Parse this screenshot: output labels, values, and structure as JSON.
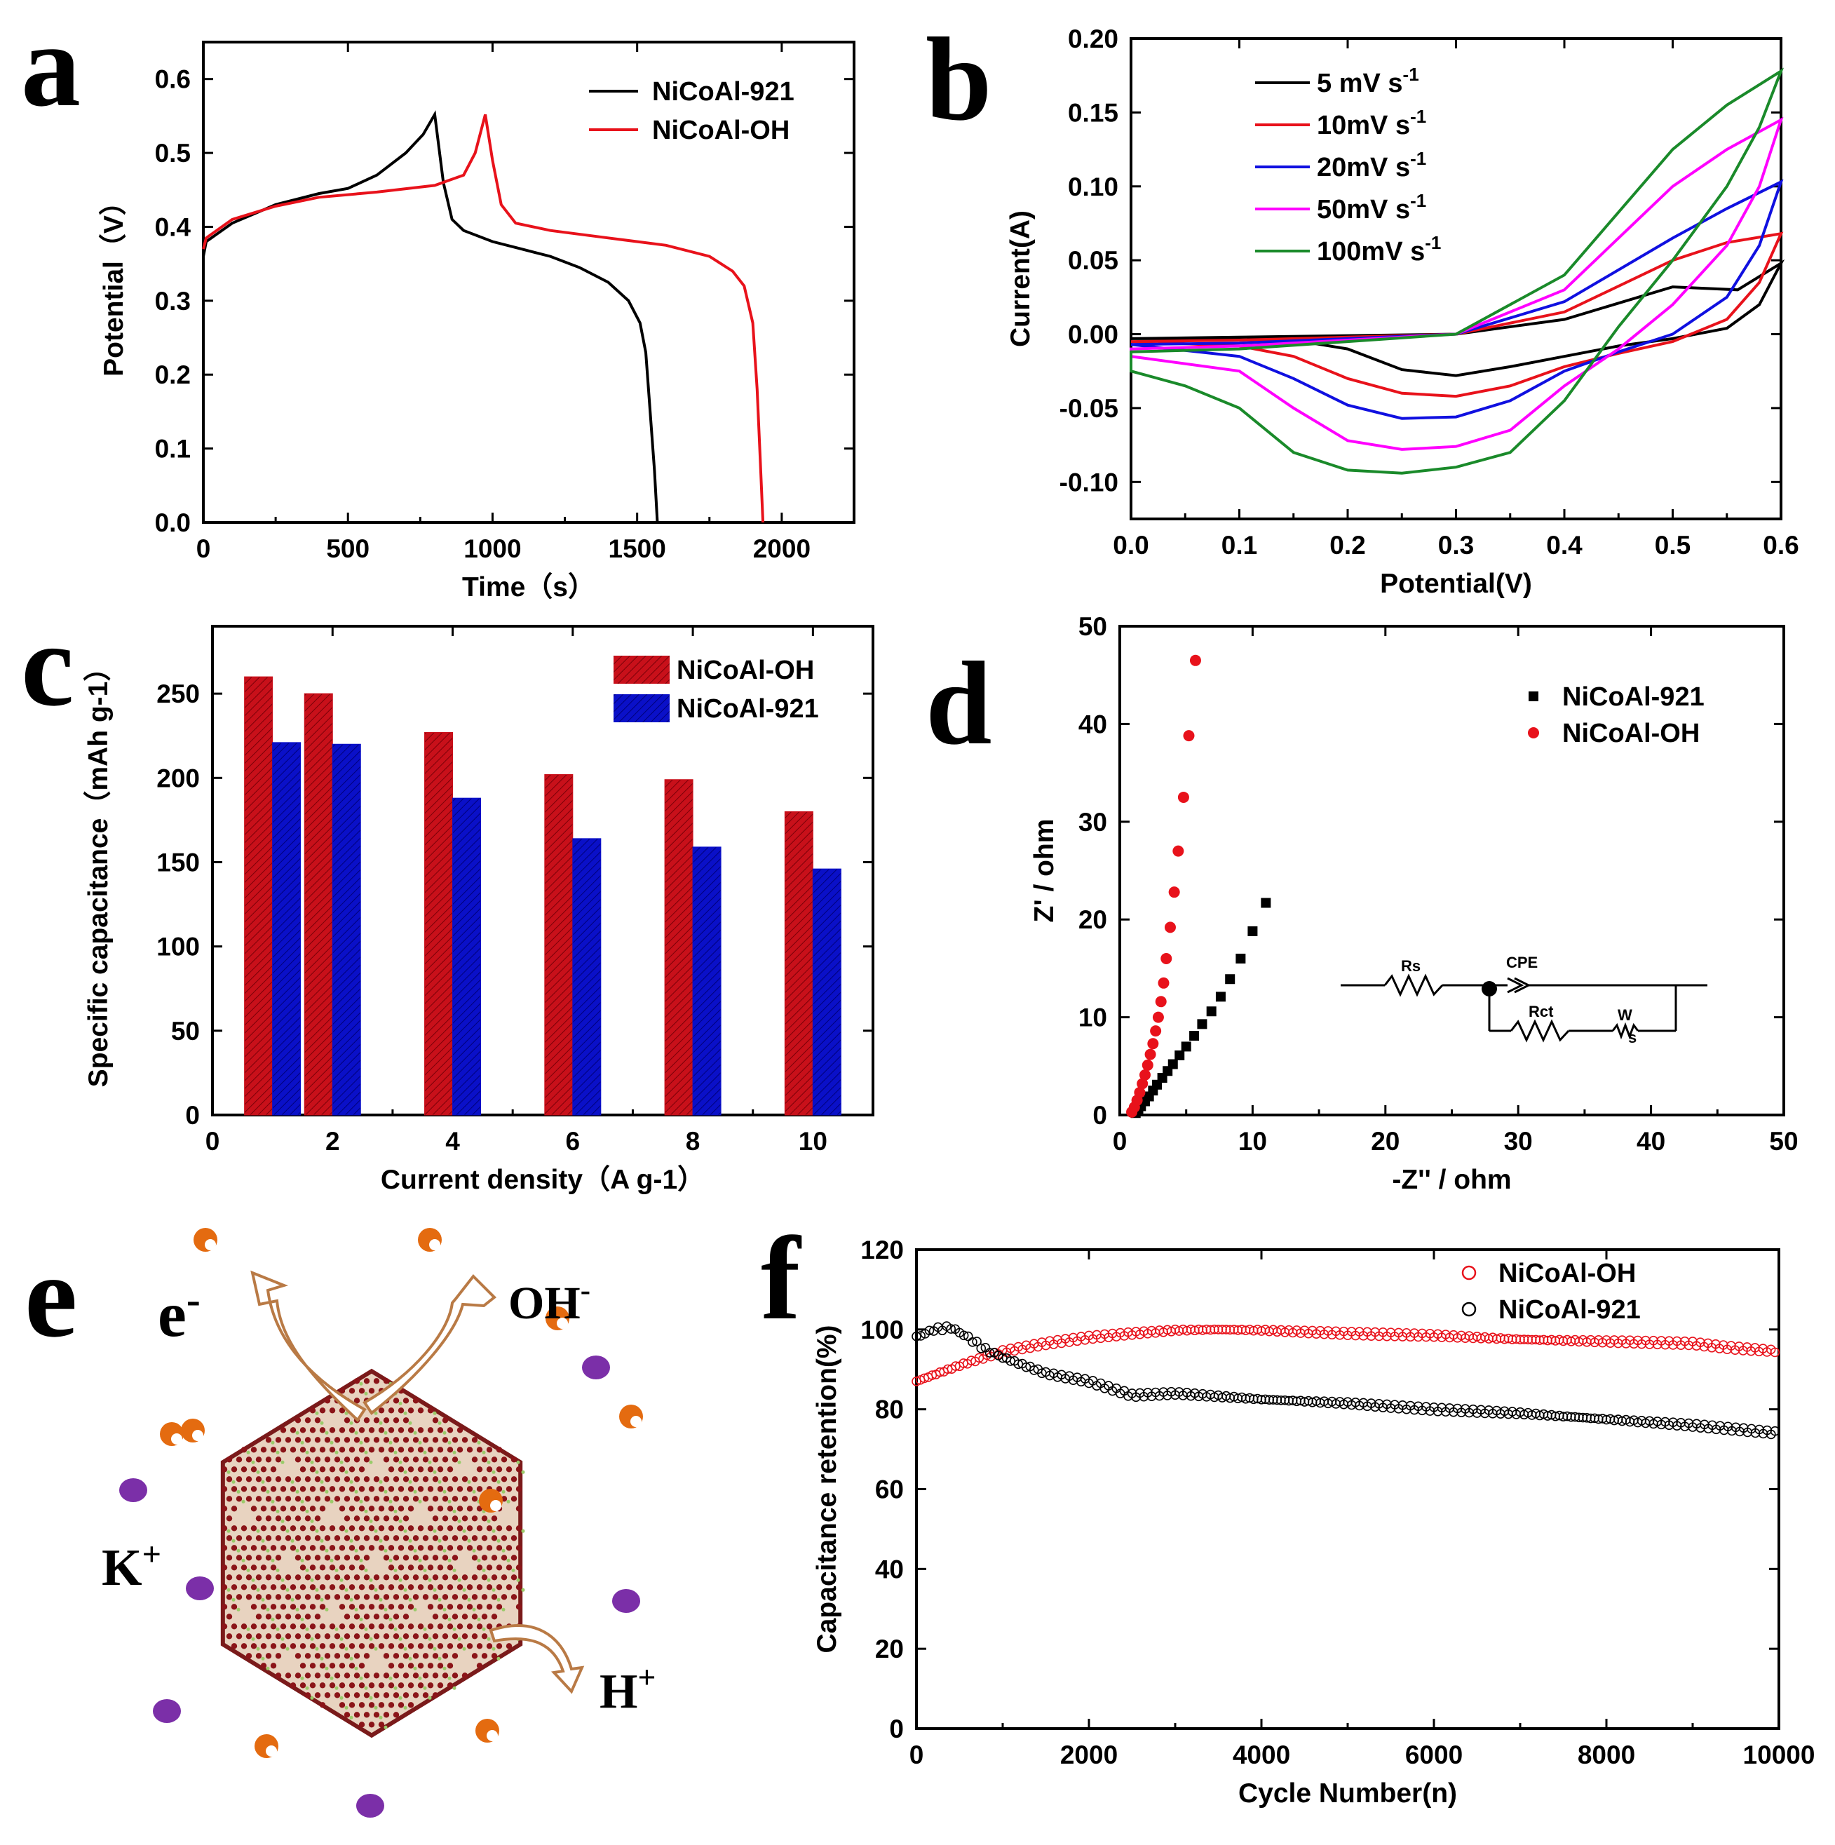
{
  "panels": {
    "a": "a",
    "b": "b",
    "c": "c",
    "d": "d",
    "e": "e",
    "f": "f"
  },
  "colors": {
    "black": "#000000",
    "red": "#e8121b",
    "blue": "#1010e0",
    "magenta": "#ff00ff",
    "green": "#1a8a2a",
    "barRed": "#c8101a",
    "barBlue": "#0a10c8",
    "ohOrange": "#e46b10",
    "kPurple": "#7b2fa8"
  },
  "chart_data": [
    {
      "id": "a",
      "type": "line",
      "xlabel": "Time（s）",
      "ylabel": "Potential（V）",
      "xlim": [
        0,
        2250
      ],
      "ylim": [
        0,
        0.65
      ],
      "xticks": [
        "0",
        "500",
        "1000",
        "1500",
        "2000"
      ],
      "yticks": [
        "0.0",
        "0.1",
        "0.2",
        "0.3",
        "0.4",
        "0.5",
        "0.6"
      ],
      "series": [
        {
          "name": "NiCoAl-921",
          "color": "#000000",
          "points": [
            [
              0,
              0.36
            ],
            [
              10,
              0.38
            ],
            [
              100,
              0.405
            ],
            [
              250,
              0.43
            ],
            [
              400,
              0.445
            ],
            [
              500,
              0.452
            ],
            [
              600,
              0.47
            ],
            [
              700,
              0.5
            ],
            [
              760,
              0.525
            ],
            [
              800,
              0.552
            ],
            [
              830,
              0.46
            ],
            [
              860,
              0.41
            ],
            [
              900,
              0.395
            ],
            [
              1000,
              0.38
            ],
            [
              1100,
              0.37
            ],
            [
              1200,
              0.36
            ],
            [
              1300,
              0.345
            ],
            [
              1400,
              0.325
            ],
            [
              1470,
              0.3
            ],
            [
              1510,
              0.27
            ],
            [
              1530,
              0.23
            ],
            [
              1545,
              0.15
            ],
            [
              1560,
              0.07
            ],
            [
              1570,
              0.0
            ]
          ]
        },
        {
          "name": "NiCoAl-OH",
          "color": "#e8121b",
          "points": [
            [
              0,
              0.37
            ],
            [
              10,
              0.385
            ],
            [
              100,
              0.41
            ],
            [
              250,
              0.428
            ],
            [
              400,
              0.44
            ],
            [
              600,
              0.447
            ],
            [
              800,
              0.456
            ],
            [
              900,
              0.47
            ],
            [
              940,
              0.5
            ],
            [
              975,
              0.552
            ],
            [
              1000,
              0.49
            ],
            [
              1030,
              0.43
            ],
            [
              1080,
              0.405
            ],
            [
              1200,
              0.395
            ],
            [
              1400,
              0.385
            ],
            [
              1600,
              0.375
            ],
            [
              1750,
              0.36
            ],
            [
              1830,
              0.34
            ],
            [
              1870,
              0.32
            ],
            [
              1900,
              0.27
            ],
            [
              1915,
              0.18
            ],
            [
              1925,
              0.09
            ],
            [
              1935,
              0.0
            ]
          ]
        }
      ]
    },
    {
      "id": "b",
      "type": "line",
      "xlabel": "Potential(V)",
      "ylabel": "Current(A)",
      "xlim": [
        0,
        0.6
      ],
      "ylim": [
        -0.125,
        0.2
      ],
      "xticks": [
        "0.0",
        "0.1",
        "0.2",
        "0.3",
        "0.4",
        "0.5",
        "0.6"
      ],
      "yticks": [
        "-0.10",
        "-0.05",
        "0.00",
        "0.05",
        "0.10",
        "0.15",
        "0.20"
      ],
      "series": [
        {
          "name": "5 mV s",
          "color": "#000000",
          "points": [
            [
              0,
              -0.003
            ],
            [
              0.1,
              -0.002
            ],
            [
              0.2,
              -0.001
            ],
            [
              0.3,
              0.0
            ],
            [
              0.4,
              0.01
            ],
            [
              0.5,
              0.032
            ],
            [
              0.56,
              0.03
            ],
            [
              0.6,
              0.048
            ],
            [
              0.58,
              0.02
            ],
            [
              0.55,
              0.004
            ],
            [
              0.5,
              -0.003
            ],
            [
              0.45,
              -0.008
            ],
            [
              0.4,
              -0.015
            ],
            [
              0.35,
              -0.022
            ],
            [
              0.3,
              -0.028
            ],
            [
              0.25,
              -0.024
            ],
            [
              0.2,
              -0.01
            ],
            [
              0.15,
              -0.004
            ],
            [
              0.1,
              -0.003
            ],
            [
              0,
              -0.003
            ]
          ]
        },
        {
          "name": "10mV s",
          "color": "#e8121b",
          "points": [
            [
              0,
              -0.005
            ],
            [
              0.1,
              -0.004
            ],
            [
              0.2,
              -0.002
            ],
            [
              0.3,
              0.0
            ],
            [
              0.4,
              0.015
            ],
            [
              0.5,
              0.05
            ],
            [
              0.55,
              0.062
            ],
            [
              0.6,
              0.068
            ],
            [
              0.58,
              0.035
            ],
            [
              0.55,
              0.01
            ],
            [
              0.5,
              -0.005
            ],
            [
              0.45,
              -0.013
            ],
            [
              0.4,
              -0.022
            ],
            [
              0.35,
              -0.035
            ],
            [
              0.3,
              -0.042
            ],
            [
              0.25,
              -0.04
            ],
            [
              0.2,
              -0.03
            ],
            [
              0.15,
              -0.015
            ],
            [
              0.1,
              -0.008
            ],
            [
              0,
              -0.005
            ]
          ]
        },
        {
          "name": "20mV s",
          "color": "#1010e0",
          "points": [
            [
              0,
              -0.007
            ],
            [
              0.1,
              -0.006
            ],
            [
              0.2,
              -0.003
            ],
            [
              0.3,
              0.0
            ],
            [
              0.4,
              0.022
            ],
            [
              0.5,
              0.065
            ],
            [
              0.55,
              0.085
            ],
            [
              0.6,
              0.103
            ],
            [
              0.58,
              0.06
            ],
            [
              0.55,
              0.025
            ],
            [
              0.5,
              0.0
            ],
            [
              0.45,
              -0.012
            ],
            [
              0.4,
              -0.025
            ],
            [
              0.35,
              -0.045
            ],
            [
              0.3,
              -0.056
            ],
            [
              0.25,
              -0.057
            ],
            [
              0.2,
              -0.048
            ],
            [
              0.15,
              -0.03
            ],
            [
              0.1,
              -0.015
            ],
            [
              0,
              -0.007
            ]
          ]
        },
        {
          "name": "50mV s",
          "color": "#ff00ff",
          "points": [
            [
              0,
              -0.01
            ],
            [
              0.1,
              -0.008
            ],
            [
              0.2,
              -0.004
            ],
            [
              0.3,
              0.0
            ],
            [
              0.4,
              0.03
            ],
            [
              0.5,
              0.1
            ],
            [
              0.55,
              0.125
            ],
            [
              0.6,
              0.145
            ],
            [
              0.58,
              0.1
            ],
            [
              0.55,
              0.06
            ],
            [
              0.5,
              0.02
            ],
            [
              0.45,
              -0.01
            ],
            [
              0.4,
              -0.035
            ],
            [
              0.35,
              -0.065
            ],
            [
              0.3,
              -0.076
            ],
            [
              0.25,
              -0.078
            ],
            [
              0.2,
              -0.072
            ],
            [
              0.15,
              -0.05
            ],
            [
              0.1,
              -0.025
            ],
            [
              0,
              -0.015
            ]
          ]
        },
        {
          "name": "100mV s",
          "color": "#1a8a2a",
          "points": [
            [
              0,
              -0.012
            ],
            [
              0.1,
              -0.01
            ],
            [
              0.2,
              -0.005
            ],
            [
              0.3,
              0.0
            ],
            [
              0.4,
              0.04
            ],
            [
              0.5,
              0.125
            ],
            [
              0.55,
              0.155
            ],
            [
              0.6,
              0.178
            ],
            [
              0.58,
              0.14
            ],
            [
              0.55,
              0.1
            ],
            [
              0.5,
              0.05
            ],
            [
              0.45,
              0.005
            ],
            [
              0.4,
              -0.045
            ],
            [
              0.35,
              -0.08
            ],
            [
              0.3,
              -0.09
            ],
            [
              0.25,
              -0.094
            ],
            [
              0.2,
              -0.092
            ],
            [
              0.15,
              -0.08
            ],
            [
              0.1,
              -0.05
            ],
            [
              0.05,
              -0.035
            ],
            [
              0,
              -0.025
            ]
          ]
        }
      ]
    },
    {
      "id": "c",
      "type": "bar",
      "xlabel": "Current density（A g-1）",
      "ylabel": "Specific capacitance（mAh g-1）",
      "xlim": [
        0,
        11
      ],
      "ylim": [
        0,
        290
      ],
      "xticks": [
        "0",
        "2",
        "4",
        "6",
        "8",
        "10"
      ],
      "yticks": [
        "0",
        "50",
        "100",
        "150",
        "200",
        "250"
      ],
      "categories": [
        1,
        2,
        4,
        6,
        8,
        10
      ],
      "series": [
        {
          "name": "NiCoAl-OH",
          "color": "#c8101a",
          "values": [
            260,
            250,
            227,
            202,
            199,
            180
          ]
        },
        {
          "name": "NiCoAl-921",
          "color": "#0a10c8",
          "values": [
            221,
            220,
            188,
            164,
            159,
            146
          ]
        }
      ]
    },
    {
      "id": "d",
      "type": "scatter",
      "xlabel": "-Z'' / ohm",
      "ylabel": "Z' / ohm",
      "xlim": [
        0,
        50
      ],
      "ylim": [
        0,
        50
      ],
      "xticks": [
        "0",
        "10",
        "20",
        "30",
        "40",
        "50"
      ],
      "yticks": [
        "0",
        "10",
        "20",
        "30",
        "40",
        "50"
      ],
      "series": [
        {
          "name": "NiCoAl-921",
          "color": "#000000",
          "marker": "square",
          "points": [
            [
              1.2,
              0.2
            ],
            [
              1.4,
              0.5
            ],
            [
              1.6,
              0.9
            ],
            [
              1.9,
              1.4
            ],
            [
              2.2,
              1.9
            ],
            [
              2.5,
              2.5
            ],
            [
              2.8,
              3.1
            ],
            [
              3.2,
              3.8
            ],
            [
              3.6,
              4.5
            ],
            [
              4.0,
              5.2
            ],
            [
              4.5,
              6.1
            ],
            [
              5.0,
              7.0
            ],
            [
              5.6,
              8.1
            ],
            [
              6.2,
              9.3
            ],
            [
              6.9,
              10.6
            ],
            [
              7.6,
              12.1
            ],
            [
              8.3,
              13.9
            ],
            [
              9.1,
              16.0
            ],
            [
              10.0,
              18.8
            ],
            [
              11.0,
              21.7
            ]
          ]
        },
        {
          "name": "NiCoAl-OH",
          "color": "#e8121b",
          "marker": "circle",
          "points": [
            [
              0.9,
              0.3
            ],
            [
              1.1,
              0.8
            ],
            [
              1.3,
              1.5
            ],
            [
              1.5,
              2.3
            ],
            [
              1.7,
              3.2
            ],
            [
              1.9,
              4.1
            ],
            [
              2.1,
              5.1
            ],
            [
              2.3,
              6.2
            ],
            [
              2.5,
              7.3
            ],
            [
              2.7,
              8.6
            ],
            [
              2.9,
              10.0
            ],
            [
              3.1,
              11.6
            ],
            [
              3.3,
              13.5
            ],
            [
              3.5,
              16.0
            ],
            [
              3.8,
              19.2
            ],
            [
              4.1,
              22.8
            ],
            [
              4.4,
              27.0
            ],
            [
              4.8,
              32.5
            ],
            [
              5.2,
              38.8
            ],
            [
              5.7,
              46.5
            ]
          ]
        }
      ],
      "circuit": {
        "rs": "Rs",
        "cpe": "CPE",
        "rct": "Rct",
        "w": "W",
        "ws": "s"
      }
    },
    {
      "id": "f",
      "type": "scatter",
      "xlabel": "Cycle Number(n)",
      "ylabel": "Capacitance retention(%)",
      "xlim": [
        0,
        10000
      ],
      "ylim": [
        0,
        120
      ],
      "xticks": [
        "0",
        "2000",
        "4000",
        "6000",
        "8000",
        "10000"
      ],
      "yticks": [
        "0",
        "20",
        "40",
        "60",
        "80",
        "100",
        "120"
      ],
      "series": [
        {
          "name": "NiCoAl-OH",
          "color": "#e8121b",
          "marker": "open-circle",
          "points": [
            [
              0,
              87
            ],
            [
              500,
              91
            ],
            [
              1000,
              94.5
            ],
            [
              1500,
              96.5
            ],
            [
              2000,
              98
            ],
            [
              2500,
              99
            ],
            [
              3000,
              99.8
            ],
            [
              3500,
              100
            ],
            [
              4000,
              99.8
            ],
            [
              5000,
              99
            ],
            [
              6000,
              98.5
            ],
            [
              7000,
              97.5
            ],
            [
              8000,
              97
            ],
            [
              9000,
              96.5
            ],
            [
              9400,
              95.5
            ],
            [
              10000,
              94.5
            ]
          ]
        },
        {
          "name": "NiCoAl-921",
          "color": "#000000",
          "marker": "open-circle",
          "points": [
            [
              0,
              98
            ],
            [
              200,
              100
            ],
            [
              400,
              100.5
            ],
            [
              600,
              98
            ],
            [
              800,
              95
            ],
            [
              1000,
              93
            ],
            [
              1500,
              89
            ],
            [
              2000,
              87
            ],
            [
              2500,
              83.5
            ],
            [
              3000,
              84
            ],
            [
              4000,
              82.5
            ],
            [
              5000,
              81.5
            ],
            [
              6000,
              80
            ],
            [
              7000,
              79
            ],
            [
              8000,
              77.5
            ],
            [
              9000,
              76
            ],
            [
              10000,
              74
            ]
          ]
        }
      ]
    }
  ],
  "schematic": {
    "e_label": "e",
    "e_sup": "-",
    "oh_label": "OH",
    "oh_sup": "-",
    "k_label": "K",
    "k_sup": "+",
    "h_label": "H",
    "h_sup": "+"
  }
}
